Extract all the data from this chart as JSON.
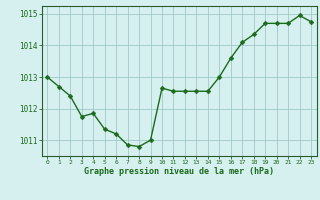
{
  "x": [
    0,
    1,
    2,
    3,
    4,
    5,
    6,
    7,
    8,
    9,
    10,
    11,
    12,
    13,
    14,
    15,
    16,
    17,
    18,
    19,
    20,
    21,
    22,
    23
  ],
  "y": [
    1013.0,
    1012.7,
    1012.4,
    1011.75,
    1011.85,
    1011.35,
    1011.2,
    1010.85,
    1010.8,
    1011.0,
    1012.65,
    1012.55,
    1012.55,
    1012.55,
    1012.55,
    1013.0,
    1013.6,
    1014.1,
    1014.35,
    1014.7,
    1014.7,
    1014.7,
    1014.95,
    1014.75
  ],
  "line_color": "#1a6b1a",
  "marker_color": "#1a6b1a",
  "bg_color": "#d6f0f0",
  "grid_color": "#a0c8c8",
  "axis_color": "#2a5a2a",
  "tick_color": "#1a6b1a",
  "xlabel": "Graphe pression niveau de la mer (hPa)",
  "xlabel_color": "#1a6b1a",
  "ylim": [
    1010.5,
    1015.25
  ],
  "yticks": [
    1011,
    1012,
    1013,
    1014,
    1015
  ],
  "xticks": [
    0,
    1,
    2,
    3,
    4,
    5,
    6,
    7,
    8,
    9,
    10,
    11,
    12,
    13,
    14,
    15,
    16,
    17,
    18,
    19,
    20,
    21,
    22,
    23
  ],
  "marker_size": 2.5,
  "line_width": 1.0
}
